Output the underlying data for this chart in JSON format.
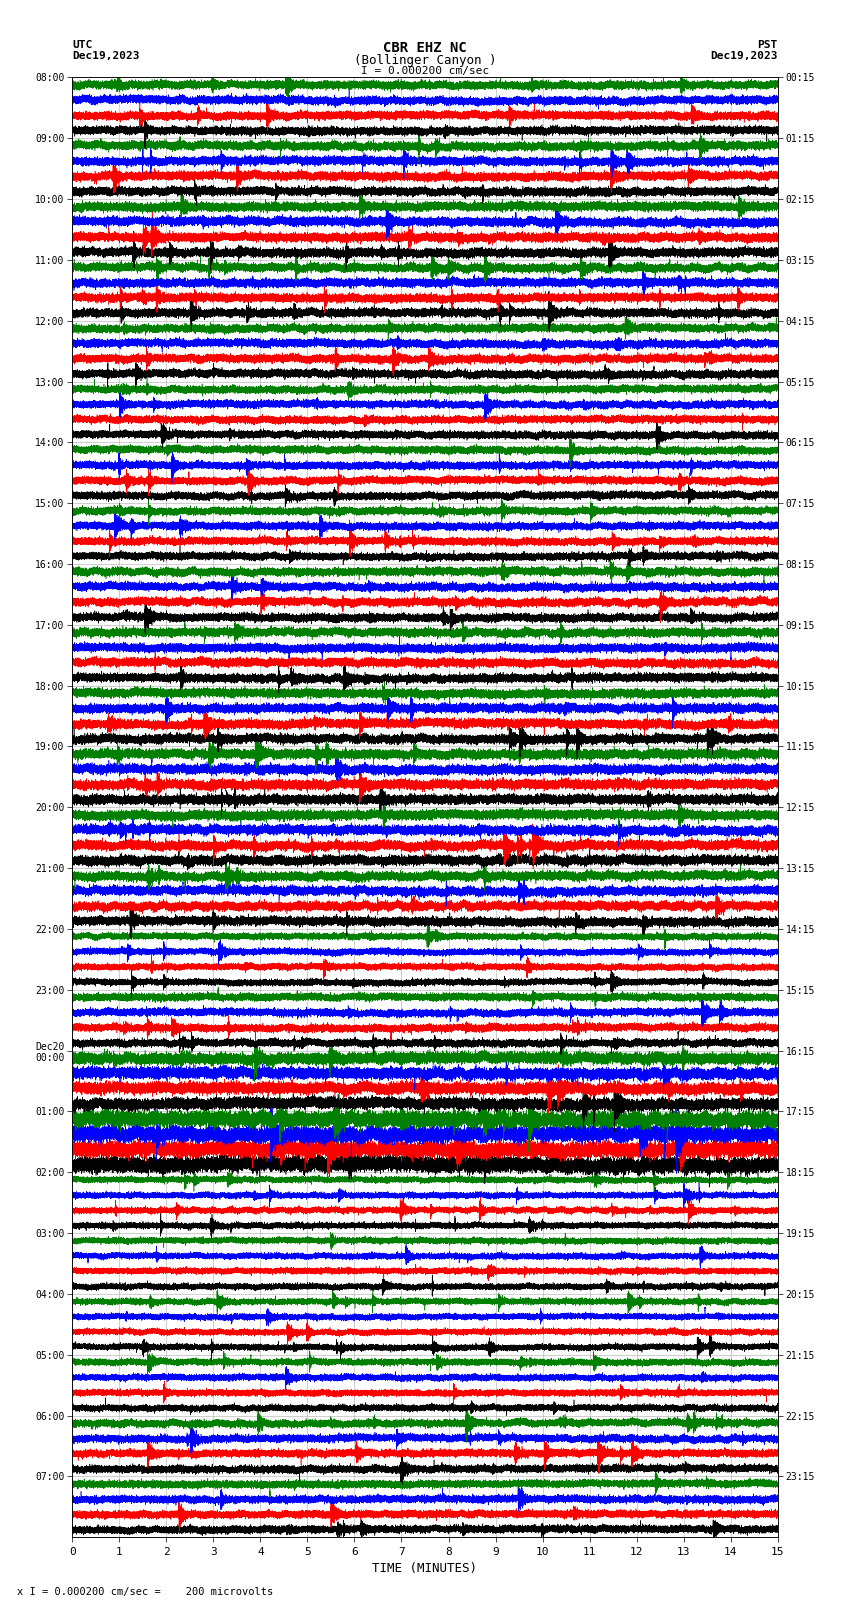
{
  "title_line1": "CBR EHZ NC",
  "title_line2": "(Bollinger Canyon )",
  "scale_label": "I = 0.000200 cm/sec",
  "left_header_line1": "UTC",
  "left_header_line2": "Dec19,2023",
  "right_header_line1": "PST",
  "right_header_line2": "Dec19,2023",
  "bottom_label": "TIME (MINUTES)",
  "footnote": "x I = 0.000200 cm/sec =    200 microvolts",
  "left_times": [
    "08:00",
    "09:00",
    "10:00",
    "11:00",
    "12:00",
    "13:00",
    "14:00",
    "15:00",
    "16:00",
    "17:00",
    "18:00",
    "19:00",
    "20:00",
    "21:00",
    "22:00",
    "23:00",
    "Dec20\n00:00",
    "01:00",
    "02:00",
    "03:00",
    "04:00",
    "05:00",
    "06:00",
    "07:00"
  ],
  "right_times": [
    "00:15",
    "01:15",
    "02:15",
    "03:15",
    "04:15",
    "05:15",
    "06:15",
    "07:15",
    "08:15",
    "09:15",
    "10:15",
    "11:15",
    "12:15",
    "13:15",
    "14:15",
    "15:15",
    "16:15",
    "17:15",
    "18:15",
    "19:15",
    "20:15",
    "21:15",
    "22:15",
    "23:15"
  ],
  "trace_colors": [
    "black",
    "red",
    "blue",
    "green"
  ],
  "n_rows": 24,
  "traces_per_row": 4,
  "duration_minutes": 15,
  "bg_color": "#ffffff",
  "grid_color": "#aaaaaa",
  "axes_bg": "#ffffff",
  "row_amplitudes": [
    0.35,
    0.35,
    0.3,
    0.28,
    0.28,
    0.28,
    0.75,
    0.55,
    0.35,
    0.3,
    0.42,
    0.45,
    0.45,
    0.42,
    0.4,
    0.38,
    0.35,
    0.35,
    0.35,
    0.38,
    0.4,
    0.42,
    0.4,
    0.38
  ]
}
